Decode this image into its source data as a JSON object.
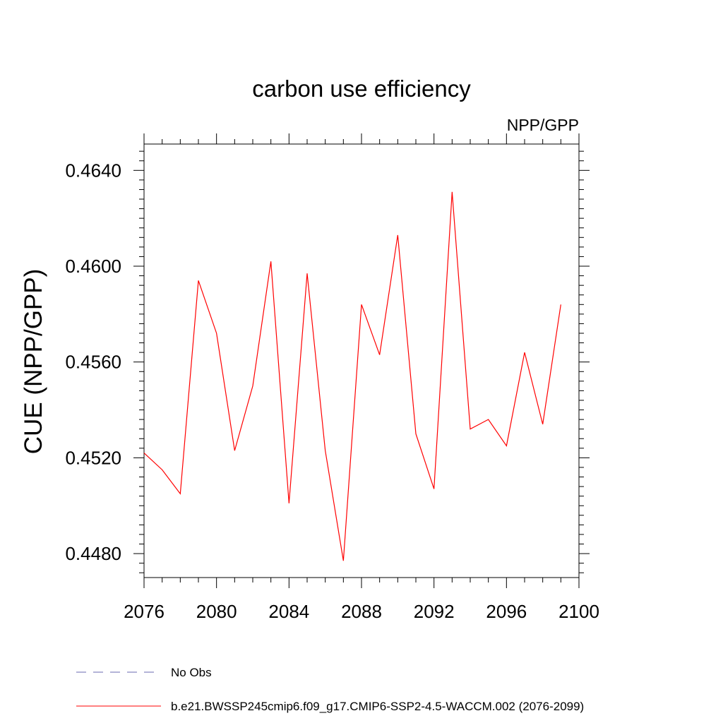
{
  "chart_data": {
    "type": "line",
    "title": "carbon use efficiency",
    "subtitle": "NPP/GPP",
    "ylabel": "CUE  (NPP/GPP)",
    "xlabel": "",
    "xlim": [
      2076,
      2100
    ],
    "ylim": [
      0.447,
      0.4651
    ],
    "x_ticks": [
      2076,
      2080,
      2084,
      2088,
      2092,
      2096,
      2100
    ],
    "x_tick_labels": [
      "2076",
      "2080",
      "2084",
      "2088",
      "2092",
      "2096",
      "2100"
    ],
    "y_ticks": [
      0.448,
      0.452,
      0.456,
      0.46,
      0.464
    ],
    "y_tick_labels": [
      "0.4480",
      "0.4520",
      "0.4560",
      "0.4600",
      "0.4640"
    ],
    "grid": false,
    "legend_position": "bottom",
    "series": [
      {
        "name": "No Obs",
        "color": "#6a6ab0",
        "dash": "dashed",
        "x": [],
        "values": []
      },
      {
        "name": "b.e21.BWSSP245cmip6.f09_g17.CMIP6-SSP2-4.5-WACCM.002 (2076-2099)",
        "color": "#ff0000",
        "dash": "solid",
        "x": [
          2076,
          2077,
          2078,
          2079,
          2080,
          2081,
          2082,
          2083,
          2084,
          2085,
          2086,
          2087,
          2088,
          2089,
          2090,
          2091,
          2092,
          2093,
          2094,
          2095,
          2096,
          2097,
          2098,
          2099
        ],
        "values": [
          0.4522,
          0.4515,
          0.4505,
          0.4594,
          0.4572,
          0.4523,
          0.455,
          0.4602,
          0.4501,
          0.4597,
          0.4523,
          0.4477,
          0.4584,
          0.4563,
          0.4613,
          0.453,
          0.4507,
          0.4631,
          0.4532,
          0.4536,
          0.4525,
          0.4564,
          0.4534,
          0.4584
        ]
      }
    ]
  }
}
